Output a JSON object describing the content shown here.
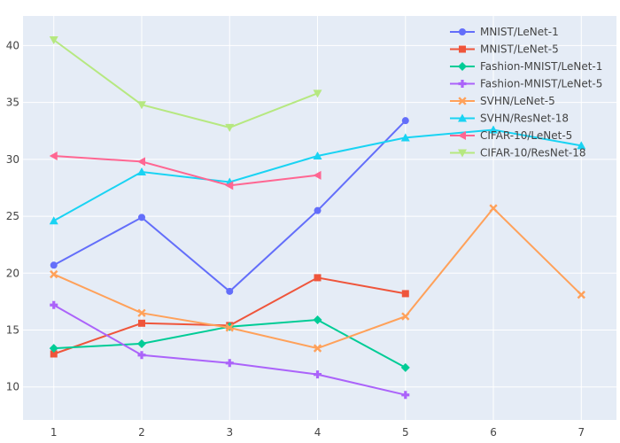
{
  "chart_data": {
    "type": "line",
    "title": "",
    "xlabel": "",
    "ylabel": "",
    "xlim": [
      0.65,
      7.4
    ],
    "ylim": [
      7.1,
      42.6
    ],
    "x_ticks": [
      1,
      2,
      3,
      4,
      5,
      6,
      7
    ],
    "y_ticks": [
      10,
      15,
      20,
      25,
      30,
      35,
      40
    ],
    "grid": true,
    "background": "#e5ecf6",
    "legend_position": "top-right",
    "series": [
      {
        "name": "MNIST/LeNet-1",
        "color": "#636efa",
        "marker": "circle",
        "x": [
          1,
          2,
          3,
          4,
          5
        ],
        "y": [
          20.7,
          24.9,
          18.4,
          25.5,
          33.4
        ]
      },
      {
        "name": "MNIST/LeNet-5",
        "color": "#ef553b",
        "marker": "square",
        "x": [
          1,
          2,
          3,
          4,
          5
        ],
        "y": [
          12.9,
          15.6,
          15.4,
          19.6,
          18.2
        ]
      },
      {
        "name": "Fashion-MNIST/LeNet-1",
        "color": "#00cc96",
        "marker": "diamond",
        "x": [
          1,
          2,
          3,
          4,
          5
        ],
        "y": [
          13.4,
          13.8,
          15.3,
          15.9,
          11.7
        ]
      },
      {
        "name": "Fashion-MNIST/LeNet-5",
        "color": "#ab63fa",
        "marker": "cross",
        "x": [
          1,
          2,
          3,
          4,
          5
        ],
        "y": [
          17.2,
          12.8,
          12.1,
          11.1,
          9.3
        ]
      },
      {
        "name": "SVHN/LeNet-5",
        "color": "#ffa15a",
        "marker": "x",
        "x": [
          1,
          2,
          3,
          4,
          5,
          6,
          7
        ],
        "y": [
          19.9,
          16.5,
          15.2,
          13.4,
          16.2,
          25.7,
          18.1
        ]
      },
      {
        "name": "SVHN/ResNet-18",
        "color": "#19d3f3",
        "marker": "triangle-up",
        "x": [
          1,
          2,
          3,
          4,
          5,
          6,
          7
        ],
        "y": [
          24.6,
          28.9,
          28.0,
          30.3,
          31.9,
          32.6,
          31.2
        ]
      },
      {
        "name": "CIFAR-10/LeNet-5",
        "color": "#ff6692",
        "marker": "triangle-left",
        "x": [
          1,
          2,
          3,
          4
        ],
        "y": [
          30.3,
          29.8,
          27.7,
          28.6
        ]
      },
      {
        "name": "CIFAR-10/ResNet-18",
        "color": "#b6e880",
        "marker": "triangle-down",
        "x": [
          1,
          2,
          3,
          4
        ],
        "y": [
          40.5,
          34.8,
          32.8,
          35.8
        ]
      }
    ]
  }
}
